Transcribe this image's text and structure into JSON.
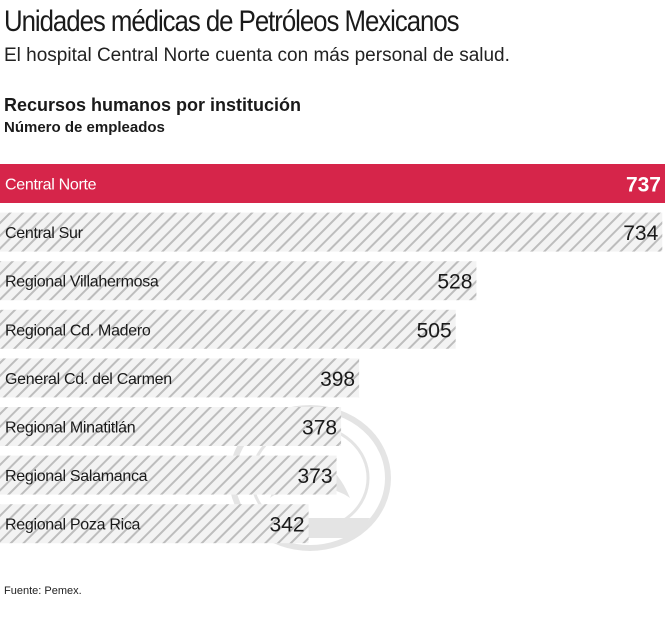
{
  "header": {
    "title": "Unidades médicas de Petróleos Mexicanos",
    "subtitle": "El hospital Central Norte cuenta con más personal de salud."
  },
  "chart_data": {
    "type": "bar",
    "orientation": "horizontal",
    "title": "Recursos humanos por institución",
    "subtitle": "Número de empleados",
    "categories": [
      "Central Norte",
      "Central Sur",
      "Regional Villahermosa",
      "Regional Cd. Madero",
      "General Cd. del Carmen",
      "Regional Minatitlán",
      "Regional Salamanca",
      "Regional Poza Rica"
    ],
    "values": [
      737,
      734,
      528,
      505,
      398,
      378,
      373,
      342
    ],
    "highlight_index": 0,
    "xlim": [
      0,
      737
    ],
    "grid": false,
    "colors": {
      "highlight": "#d6254a",
      "hatch_stripe": "#bdbdbd",
      "hatch_background": "#f3f3f3",
      "highlight_label_text": "#ffffff",
      "label_text": "#1a1a1a"
    }
  },
  "footer": {
    "source": "Fuente: Pemex."
  }
}
